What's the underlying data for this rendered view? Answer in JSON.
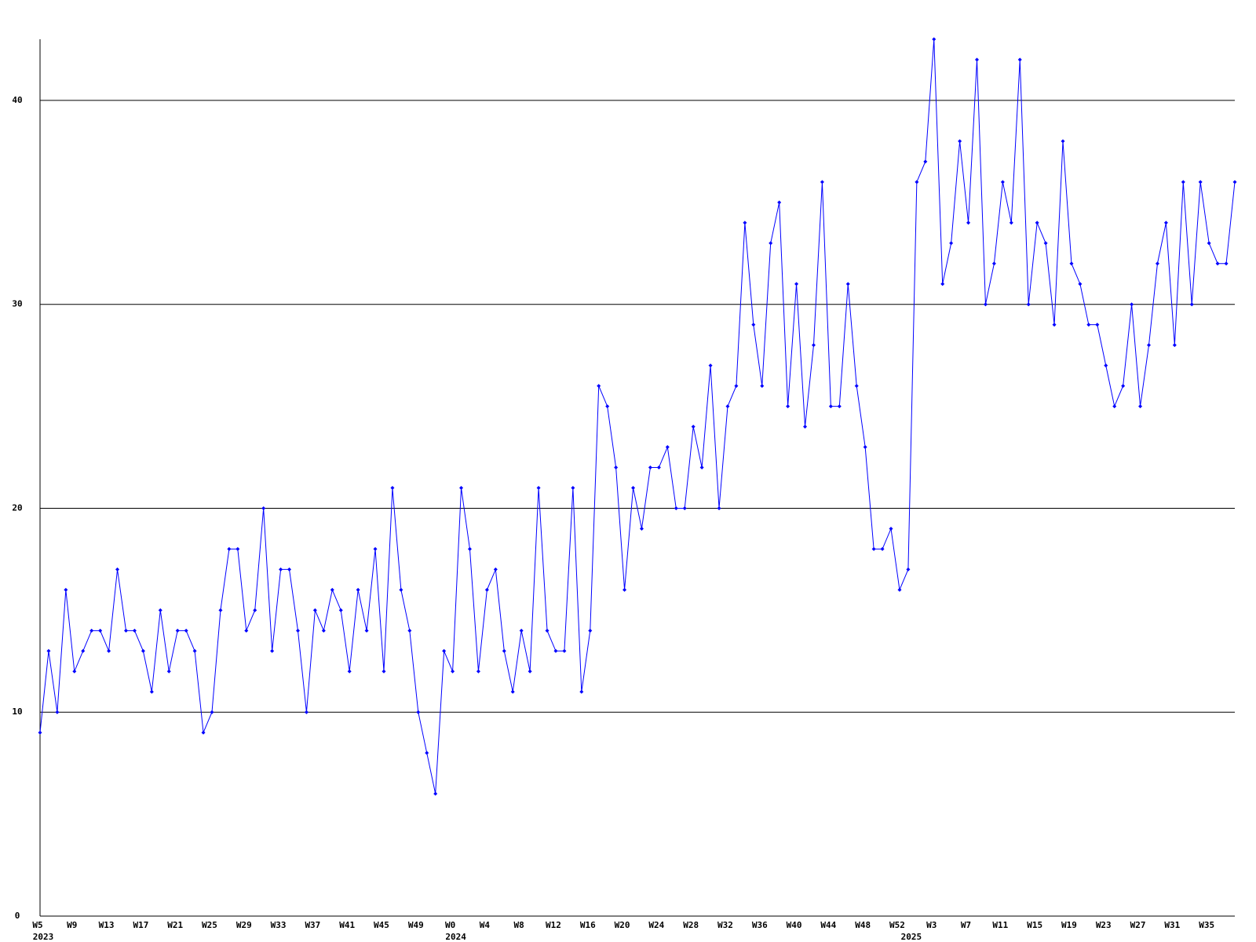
{
  "chart_data": {
    "type": "line",
    "categories": [
      "W5",
      null,
      null,
      null,
      "W9",
      null,
      null,
      null,
      "W13",
      null,
      null,
      null,
      "W17",
      null,
      null,
      null,
      "W21",
      null,
      null,
      null,
      "W25",
      null,
      null,
      null,
      "W29",
      null,
      null,
      null,
      "W33",
      null,
      null,
      null,
      "W37",
      null,
      null,
      null,
      "W41",
      null,
      null,
      null,
      "W45",
      null,
      null,
      null,
      "W49",
      null,
      null,
      null,
      "W0",
      null,
      null,
      null,
      "W4",
      null,
      null,
      null,
      "W8",
      null,
      null,
      null,
      "W12",
      null,
      null,
      null,
      "W16",
      null,
      null,
      null,
      "W20",
      null,
      null,
      null,
      "W24",
      null,
      null,
      null,
      "W28",
      null,
      null,
      null,
      "W32",
      null,
      null,
      null,
      "W36",
      null,
      null,
      null,
      "W40",
      null,
      null,
      null,
      "W44",
      null,
      null,
      null,
      "W48",
      null,
      null,
      null,
      "W52",
      null,
      null,
      null,
      "W3",
      null,
      null,
      null,
      "W7",
      null,
      null,
      null,
      "W11",
      null,
      null,
      null,
      "W15",
      null,
      null,
      null,
      "W19",
      null,
      null,
      null,
      "W23",
      null,
      null,
      null,
      "W27",
      null,
      null,
      null,
      "W31",
      null,
      null,
      null,
      "W35",
      null,
      null,
      null
    ],
    "x_secondary": [
      "2023",
      null,
      null,
      null,
      null,
      null,
      null,
      null,
      null,
      null,
      null,
      null,
      null,
      null,
      null,
      null,
      null,
      null,
      null,
      null,
      null,
      null,
      null,
      null,
      null,
      null,
      null,
      null,
      null,
      null,
      null,
      null,
      null,
      null,
      null,
      null,
      null,
      null,
      null,
      null,
      null,
      null,
      null,
      null,
      null,
      null,
      null,
      null,
      "2024",
      null,
      null,
      null,
      null,
      null,
      null,
      null,
      null,
      null,
      null,
      null,
      null,
      null,
      null,
      null,
      null,
      null,
      null,
      null,
      null,
      null,
      null,
      null,
      null,
      null,
      null,
      null,
      null,
      null,
      null,
      null,
      null,
      null,
      null,
      null,
      null,
      null,
      null,
      null,
      null,
      null,
      null,
      null,
      null,
      null,
      null,
      null,
      null,
      null,
      null,
      null,
      null,
      "2025",
      null,
      null,
      null,
      null,
      null,
      null,
      null,
      null,
      null,
      null,
      null,
      null,
      null,
      null,
      null,
      null,
      null,
      null,
      null,
      null,
      null,
      null,
      null,
      null,
      null,
      null,
      null,
      null,
      null,
      null,
      null,
      null,
      null,
      null,
      null,
      null,
      null
    ],
    "values": [
      9,
      13,
      10,
      16,
      12,
      13,
      14,
      14,
      13,
      17,
      14,
      14,
      13,
      11,
      15,
      12,
      14,
      14,
      13,
      9,
      10,
      15,
      18,
      18,
      14,
      15,
      20,
      13,
      17,
      17,
      14,
      10,
      15,
      14,
      16,
      15,
      12,
      16,
      14,
      18,
      12,
      21,
      16,
      14,
      10,
      8,
      6,
      13,
      12,
      21,
      18,
      12,
      16,
      17,
      13,
      11,
      14,
      12,
      21,
      14,
      13,
      13,
      21,
      11,
      14,
      26,
      25,
      22,
      16,
      21,
      19,
      22,
      22,
      23,
      20,
      20,
      24,
      22,
      27,
      20,
      25,
      26,
      34,
      29,
      26,
      33,
      35,
      25,
      31,
      24,
      28,
      36,
      25,
      25,
      31,
      26,
      23,
      18,
      18,
      19,
      16,
      17,
      36,
      37,
      43,
      31,
      33,
      38,
      34,
      42,
      30,
      32,
      36,
      34,
      42,
      30,
      34,
      33,
      29,
      38,
      32,
      31,
      29,
      29,
      27,
      25,
      26,
      30,
      25,
      28,
      32,
      34,
      28,
      36,
      30,
      36,
      33,
      32,
      32,
      36
    ],
    "color": "#0000ff",
    "ylim": [
      0,
      43
    ],
    "yticks": [
      0,
      10,
      20,
      30,
      40
    ],
    "grid": true
  }
}
